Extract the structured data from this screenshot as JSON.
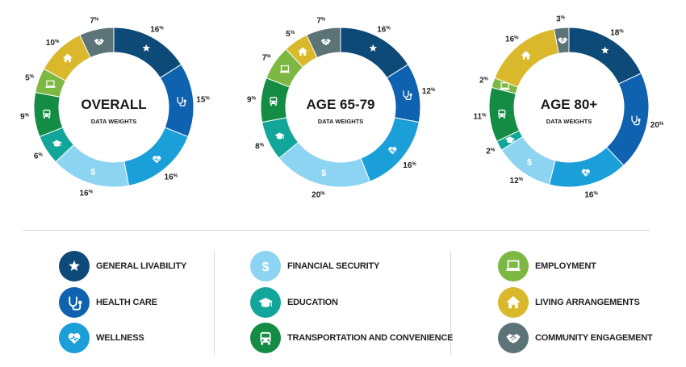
{
  "categories": [
    {
      "key": "general-livability",
      "label": "GENERAL LIVABILITY",
      "color": "#0d4a78",
      "icon": "star-icon"
    },
    {
      "key": "health-care",
      "label": "HEALTH CARE",
      "color": "#0f62b0",
      "icon": "stethoscope-icon"
    },
    {
      "key": "wellness",
      "label": "WELLNESS",
      "color": "#1a9fd9",
      "icon": "heart-pulse-icon"
    },
    {
      "key": "financial-security",
      "label": "FINANCIAL SECURITY",
      "color": "#8dd3f2",
      "icon": "dollar-icon"
    },
    {
      "key": "education",
      "label": "EDUCATION",
      "color": "#11a699",
      "icon": "graduation-cap-icon"
    },
    {
      "key": "transportation",
      "label": "TRANSPORTATION AND CONVENIENCE",
      "color": "#148c43",
      "icon": "bus-icon"
    },
    {
      "key": "employment",
      "label": "EMPLOYMENT",
      "color": "#7db843",
      "icon": "laptop-icon"
    },
    {
      "key": "living-arrangements",
      "label": "LIVING ARRANGEMENTS",
      "color": "#d9b92b",
      "icon": "house-icon"
    },
    {
      "key": "community-engagement",
      "label": "COMMUNITY ENGAGEMENT",
      "color": "#5c7477",
      "icon": "handshake-icon"
    }
  ],
  "chart_data": [
    {
      "type": "pie",
      "title": "OVERALL",
      "subtitle": "DATA WEIGHTS",
      "values": [
        16,
        15,
        16,
        16,
        6,
        9,
        5,
        10,
        7
      ]
    },
    {
      "type": "pie",
      "title": "AGE 65-79",
      "subtitle": "DATA WEIGHTS",
      "values": [
        16,
        12,
        16,
        20,
        8,
        9,
        7,
        5,
        7
      ]
    },
    {
      "type": "pie",
      "title": "AGE 80+",
      "subtitle": "DATA WEIGHTS",
      "values": [
        18,
        20,
        16,
        12,
        2,
        11,
        2,
        16,
        3
      ]
    }
  ],
  "percent_suffix": "%"
}
